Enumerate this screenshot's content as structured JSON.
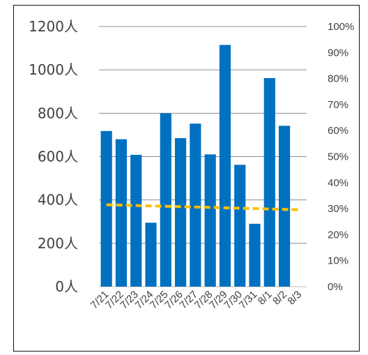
{
  "chart_data": {
    "type": "bar",
    "categories": [
      "7/21",
      "7/22",
      "7/23",
      "7/24",
      "7/25",
      "7/26",
      "7/27",
      "7/28",
      "7/29",
      "7/30",
      "7/31",
      "8/1",
      "8/2",
      "8/3"
    ],
    "series": [
      {
        "type": "bar",
        "axis": "left",
        "color": "#0070C0",
        "values": [
          718,
          680,
          608,
          295,
          800,
          685,
          752,
          610,
          1115,
          562,
          290,
          962,
          742,
          null
        ]
      },
      {
        "type": "line",
        "style": "dashed",
        "axis": "right",
        "color": "#FFC000",
        "values": [
          0.315,
          0.3135,
          0.312,
          0.3105,
          0.309,
          0.3075,
          0.306,
          0.3045,
          0.303,
          0.3015,
          0.3,
          0.2985,
          0.297,
          0.2955
        ]
      }
    ],
    "y_left": {
      "ticks": [
        0,
        200,
        400,
        600,
        800,
        1000,
        1200
      ],
      "tick_labels": [
        "0人",
        "200人",
        "400人",
        "600人",
        "800人",
        "1000人",
        "1200人"
      ],
      "ylim": [
        0,
        1200
      ]
    },
    "y_right": {
      "ticks": [
        0,
        0.1,
        0.2,
        0.3,
        0.4,
        0.5,
        0.6,
        0.7,
        0.8,
        0.9,
        1.0
      ],
      "tick_labels": [
        "0%",
        "10%",
        "20%",
        "30%",
        "40%",
        "50%",
        "60%",
        "70%",
        "80%",
        "90%",
        "100%"
      ],
      "ylim": [
        0,
        1
      ]
    },
    "x_tick_labels": [
      "7/21",
      "7/22",
      "7/23",
      "7/24",
      "7/25",
      "7/26",
      "7/27",
      "7/28",
      "7/29",
      "7/30",
      "7/31",
      "8/1",
      "8/2",
      "8/3"
    ],
    "grid": true,
    "legend": "none",
    "title": "",
    "xlabel": "",
    "ylabel": ""
  }
}
